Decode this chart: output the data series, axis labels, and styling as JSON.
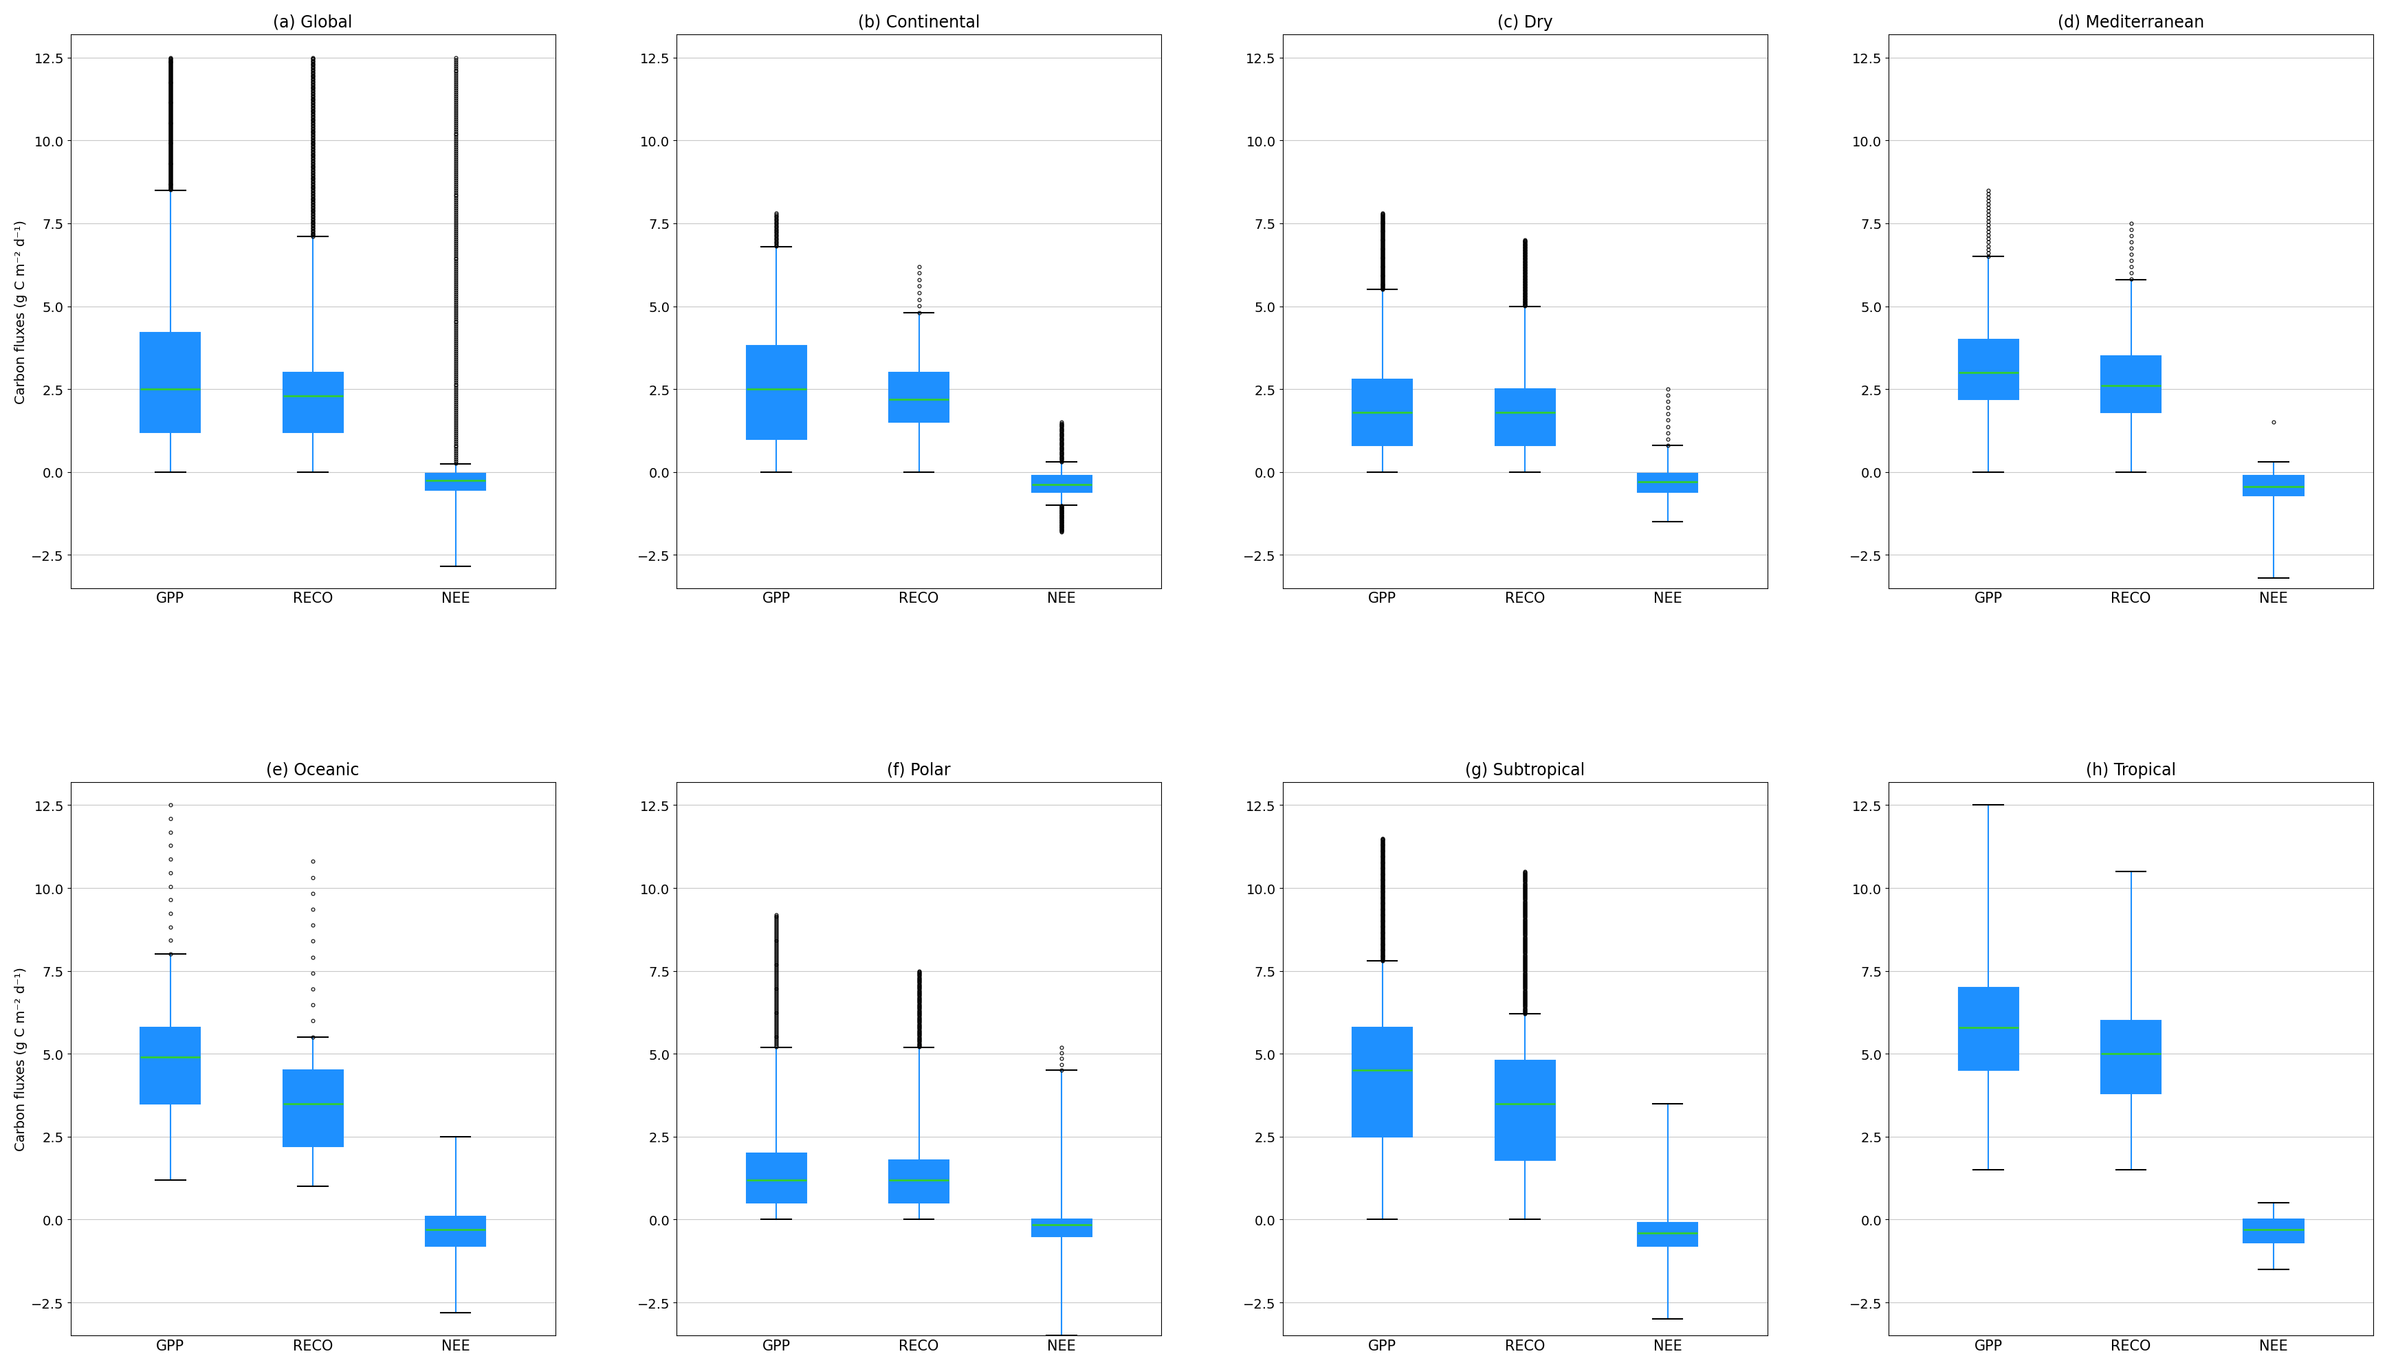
{
  "panels": [
    {
      "title": "(a) Global",
      "gpp": {
        "q1": 1.2,
        "median": 2.5,
        "q3": 4.2,
        "whislo": 0.0,
        "whishi": 8.5,
        "n_fliers_high": 200,
        "flier_hi_max": 12.5,
        "n_fliers_low": 0,
        "flier_lo_min": 0,
        "sparse_fliers_high": [],
        "sparse_fliers_low": []
      },
      "reco": {
        "q1": 1.2,
        "median": 2.3,
        "q3": 3.0,
        "whislo": 0.0,
        "whishi": 7.1,
        "n_fliers_high": 200,
        "flier_hi_max": 12.5,
        "n_fliers_low": 0,
        "flier_lo_min": 0,
        "sparse_fliers_high": [],
        "sparse_fliers_low": []
      },
      "nee": {
        "q1": -0.55,
        "median": -0.25,
        "q3": -0.05,
        "whislo": -2.85,
        "whishi": 0.25,
        "n_fliers_high": 200,
        "flier_hi_max": 12.5,
        "n_fliers_low": 0,
        "flier_lo_min": 0,
        "sparse_fliers_high": [],
        "sparse_fliers_low": []
      }
    },
    {
      "title": "(b) Continental",
      "gpp": {
        "q1": 1.0,
        "median": 2.5,
        "q3": 3.8,
        "whislo": 0.0,
        "whishi": 6.8,
        "n_fliers_high": 30,
        "flier_hi_max": 7.8,
        "n_fliers_low": 0,
        "flier_lo_min": 0,
        "sparse_fliers_high": [],
        "sparse_fliers_low": []
      },
      "reco": {
        "q1": 1.5,
        "median": 2.2,
        "q3": 3.0,
        "whislo": 0.0,
        "whishi": 4.8,
        "n_fliers_high": 8,
        "flier_hi_max": 6.2,
        "n_fliers_low": 0,
        "flier_lo_min": 0,
        "sparse_fliers_high": [],
        "sparse_fliers_low": []
      },
      "nee": {
        "q1": -0.6,
        "median": -0.38,
        "q3": -0.1,
        "whislo": -1.0,
        "whishi": 0.3,
        "n_fliers_high": 50,
        "flier_hi_max": 1.5,
        "n_fliers_low": 50,
        "flier_lo_min": -1.8,
        "sparse_fliers_high": [],
        "sparse_fliers_low": []
      }
    },
    {
      "title": "(c) Dry",
      "gpp": {
        "q1": 0.8,
        "median": 1.8,
        "q3": 2.8,
        "whislo": 0.0,
        "whishi": 5.5,
        "n_fliers_high": 120,
        "flier_hi_max": 7.8,
        "n_fliers_low": 0,
        "flier_lo_min": 0,
        "sparse_fliers_high": [],
        "sparse_fliers_low": []
      },
      "reco": {
        "q1": 0.8,
        "median": 1.8,
        "q3": 2.5,
        "whislo": 0.0,
        "whishi": 5.0,
        "n_fliers_high": 120,
        "flier_hi_max": 7.0,
        "n_fliers_low": 0,
        "flier_lo_min": 0,
        "sparse_fliers_high": [],
        "sparse_fliers_low": []
      },
      "nee": {
        "q1": -0.6,
        "median": -0.3,
        "q3": -0.05,
        "whislo": -1.5,
        "whishi": 0.8,
        "n_fliers_high": 10,
        "flier_hi_max": 2.5,
        "n_fliers_low": 0,
        "flier_lo_min": 0,
        "sparse_fliers_high": [],
        "sparse_fliers_low": []
      }
    },
    {
      "title": "(d) Mediterranean",
      "gpp": {
        "q1": 2.2,
        "median": 3.0,
        "q3": 4.0,
        "whislo": 0.0,
        "whishi": 6.5,
        "n_fliers_high": 20,
        "flier_hi_max": 8.5,
        "n_fliers_low": 0,
        "flier_lo_min": 0,
        "sparse_fliers_high": [],
        "sparse_fliers_low": []
      },
      "reco": {
        "q1": 1.8,
        "median": 2.6,
        "q3": 3.5,
        "whislo": 0.0,
        "whishi": 5.8,
        "n_fliers_high": 10,
        "flier_hi_max": 7.5,
        "n_fliers_low": 0,
        "flier_lo_min": 0,
        "sparse_fliers_high": [],
        "sparse_fliers_low": []
      },
      "nee": {
        "q1": -0.7,
        "median": -0.45,
        "q3": -0.1,
        "whislo": -3.2,
        "whishi": 0.3,
        "n_fliers_high": 0,
        "flier_hi_max": 0,
        "n_fliers_low": 0,
        "flier_lo_min": 0,
        "sparse_fliers_high": [
          1.5
        ],
        "sparse_fliers_low": []
      }
    },
    {
      "title": "(e) Oceanic",
      "gpp": {
        "q1": 3.5,
        "median": 4.9,
        "q3": 5.8,
        "whislo": 1.2,
        "whishi": 8.0,
        "n_fliers_high": 12,
        "flier_hi_max": 12.5,
        "n_fliers_low": 0,
        "flier_lo_min": 0,
        "sparse_fliers_high": [],
        "sparse_fliers_low": []
      },
      "reco": {
        "q1": 2.2,
        "median": 3.5,
        "q3": 4.5,
        "whislo": 1.0,
        "whishi": 5.5,
        "n_fliers_high": 12,
        "flier_hi_max": 10.8,
        "n_fliers_low": 0,
        "flier_lo_min": 0,
        "sparse_fliers_high": [],
        "sparse_fliers_low": []
      },
      "nee": {
        "q1": -0.8,
        "median": -0.3,
        "q3": 0.1,
        "whislo": -2.8,
        "whishi": 2.5,
        "n_fliers_high": 0,
        "flier_hi_max": 0,
        "n_fliers_low": 0,
        "flier_lo_min": 0,
        "sparse_fliers_high": [],
        "sparse_fliers_low": []
      }
    },
    {
      "title": "(f) Polar",
      "gpp": {
        "q1": 0.5,
        "median": 1.2,
        "q3": 2.0,
        "whislo": 0.0,
        "whishi": 5.2,
        "n_fliers_high": 100,
        "flier_hi_max": 9.2,
        "n_fliers_low": 0,
        "flier_lo_min": 0,
        "sparse_fliers_high": [],
        "sparse_fliers_low": []
      },
      "reco": {
        "q1": 0.5,
        "median": 1.2,
        "q3": 1.8,
        "whislo": 0.0,
        "whishi": 5.2,
        "n_fliers_high": 100,
        "flier_hi_max": 7.5,
        "n_fliers_low": 0,
        "flier_lo_min": 0,
        "sparse_fliers_high": [],
        "sparse_fliers_low": []
      },
      "nee": {
        "q1": -0.5,
        "median": -0.15,
        "q3": 0.0,
        "whislo": -3.5,
        "whishi": 4.5,
        "n_fliers_high": 5,
        "flier_hi_max": 5.2,
        "n_fliers_low": 0,
        "flier_lo_min": 0,
        "sparse_fliers_high": [],
        "sparse_fliers_low": []
      }
    },
    {
      "title": "(g) Subtropical",
      "gpp": {
        "q1": 2.5,
        "median": 4.5,
        "q3": 5.8,
        "whislo": 0.0,
        "whishi": 7.8,
        "n_fliers_high": 200,
        "flier_hi_max": 11.5,
        "n_fliers_low": 0,
        "flier_lo_min": 0,
        "sparse_fliers_high": [],
        "sparse_fliers_low": []
      },
      "reco": {
        "q1": 1.8,
        "median": 3.5,
        "q3": 4.8,
        "whislo": 0.0,
        "whishi": 6.2,
        "n_fliers_high": 200,
        "flier_hi_max": 10.5,
        "n_fliers_low": 0,
        "flier_lo_min": 0,
        "sparse_fliers_high": [],
        "sparse_fliers_low": []
      },
      "nee": {
        "q1": -0.8,
        "median": -0.4,
        "q3": -0.1,
        "whislo": -3.0,
        "whishi": 3.5,
        "n_fliers_high": 0,
        "flier_hi_max": 0,
        "n_fliers_low": 0,
        "flier_lo_min": 0,
        "sparse_fliers_high": [],
        "sparse_fliers_low": []
      }
    },
    {
      "title": "(h) Tropical",
      "gpp": {
        "q1": 4.5,
        "median": 5.8,
        "q3": 7.0,
        "whislo": 1.5,
        "whishi": 12.5,
        "n_fliers_high": 0,
        "flier_hi_max": 0,
        "n_fliers_low": 0,
        "flier_lo_min": 0,
        "sparse_fliers_high": [],
        "sparse_fliers_low": []
      },
      "reco": {
        "q1": 3.8,
        "median": 5.0,
        "q3": 6.0,
        "whislo": 1.5,
        "whishi": 10.5,
        "n_fliers_high": 0,
        "flier_hi_max": 0,
        "n_fliers_low": 0,
        "flier_lo_min": 0,
        "sparse_fliers_high": [],
        "sparse_fliers_low": []
      },
      "nee": {
        "q1": -0.7,
        "median": -0.3,
        "q3": 0.0,
        "whislo": -1.5,
        "whishi": 0.5,
        "n_fliers_high": 0,
        "flier_hi_max": 0,
        "n_fliers_low": 0,
        "flier_lo_min": 0,
        "sparse_fliers_high": [],
        "sparse_fliers_low": []
      }
    }
  ],
  "ylim": [
    -3.5,
    13.2
  ],
  "yticks": [
    -2.5,
    0.0,
    2.5,
    5.0,
    7.5,
    10.0,
    12.5
  ],
  "box_color": "#1E90FF",
  "median_color": "#32CD32",
  "cap_color": "black",
  "whisker_color": "#1E90FF",
  "flier_color": "black",
  "ylabel": "Carbon fluxes (g C m⁻² d⁻¹)",
  "xlabels": [
    "GPP",
    "RECO",
    "NEE"
  ],
  "bg_color": "white",
  "grid_color": "#c8c8c8"
}
